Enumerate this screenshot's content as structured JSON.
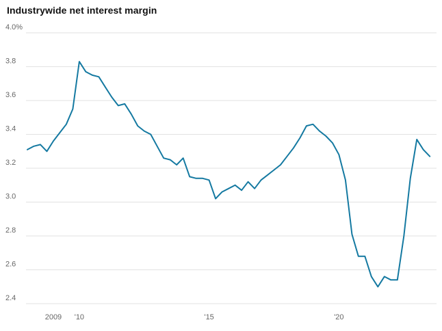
{
  "page": {
    "title": "Industrywide net interest margin"
  },
  "colors": {
    "background": "#ffffff",
    "line": "#1479a1",
    "grid": "#e2e2e2",
    "tick_label": "#666666",
    "title": "#111111"
  },
  "chart_data": {
    "type": "line",
    "title": "Industrywide net interest margin",
    "unit": "%",
    "grid": "horizontal",
    "legend": "none",
    "xlim": [
      2008.0,
      2023.6
    ],
    "ylim": [
      2.4,
      4.0
    ],
    "x_ticks": [
      {
        "value": 2009,
        "label": "2009"
      },
      {
        "value": 2010,
        "label": "'10"
      },
      {
        "value": 2015,
        "label": "'15"
      },
      {
        "value": 2020,
        "label": "'20"
      }
    ],
    "y_ticks": [
      {
        "value": 4.0,
        "label": "4.0%"
      },
      {
        "value": 3.8,
        "label": "3.8"
      },
      {
        "value": 3.6,
        "label": "3.6"
      },
      {
        "value": 3.4,
        "label": "3.4"
      },
      {
        "value": 3.2,
        "label": "3.2"
      },
      {
        "value": 3.0,
        "label": "3.0"
      },
      {
        "value": 2.8,
        "label": "2.8"
      },
      {
        "value": 2.6,
        "label": "2.6"
      },
      {
        "value": 2.4,
        "label": "2.4"
      }
    ],
    "series": [
      {
        "name": "Industrywide net interest margin",
        "color": "#1479a1",
        "x_start": 2008.0,
        "x_step": 0.25,
        "values": [
          3.31,
          3.33,
          3.34,
          3.3,
          3.36,
          3.41,
          3.46,
          3.55,
          3.83,
          3.77,
          3.75,
          3.74,
          3.68,
          3.62,
          3.57,
          3.58,
          3.52,
          3.45,
          3.42,
          3.4,
          3.33,
          3.26,
          3.25,
          3.22,
          3.26,
          3.15,
          3.14,
          3.14,
          3.13,
          3.02,
          3.06,
          3.08,
          3.1,
          3.07,
          3.12,
          3.08,
          3.13,
          3.16,
          3.19,
          3.22,
          3.27,
          3.32,
          3.38,
          3.45,
          3.46,
          3.42,
          3.39,
          3.35,
          3.28,
          3.13,
          2.81,
          2.68,
          2.68,
          2.56,
          2.5,
          2.56,
          2.54,
          2.54,
          2.8,
          3.14,
          3.37,
          3.31,
          3.27
        ]
      }
    ]
  }
}
